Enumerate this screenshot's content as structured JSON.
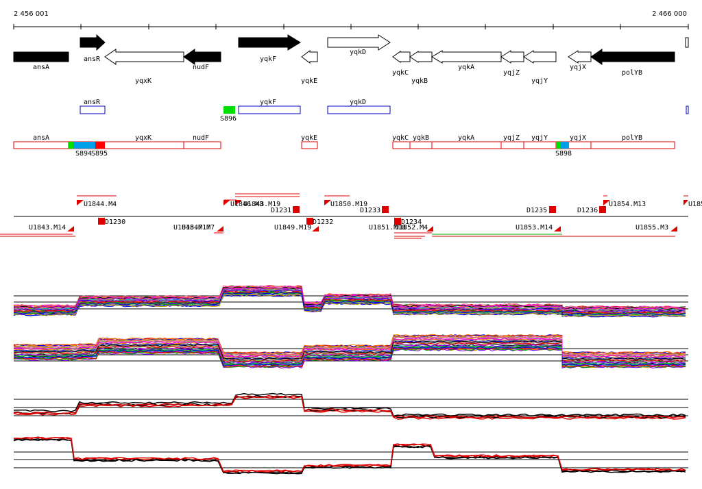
{
  "ruler": {
    "start_label": "2 456 001",
    "end_label": "2 466 000"
  },
  "colors": {
    "gene_fill": "#000000",
    "gene_outline": "#000000",
    "feature_blue": "#0000c0",
    "feature_red": "#e00000",
    "site_green": "#00e000",
    "site_blue": "#00a0e8",
    "site_red": "#ff0000",
    "trace_black": "#000000",
    "trace_red": "#e00000",
    "background": "#ffffff"
  },
  "genes": [
    {
      "name": "ansA",
      "label": "ansA",
      "strand": "-",
      "filled": true
    },
    {
      "name": "ansR",
      "label": "ansR",
      "strand": "+",
      "filled": true
    },
    {
      "name": "yqxK",
      "label": "yqxK",
      "strand": "-",
      "filled": false
    },
    {
      "name": "nudF",
      "label": "nudF",
      "strand": "-",
      "filled": true
    },
    {
      "name": "yqkF",
      "label": "yqkF",
      "strand": "+",
      "filled": true
    },
    {
      "name": "yqkE",
      "label": "yqkE",
      "strand": "-",
      "filled": false
    },
    {
      "name": "yqkD",
      "label": "yqkD",
      "strand": "+",
      "filled": false
    },
    {
      "name": "yqkC",
      "label": "yqkC",
      "strand": "-",
      "filled": false
    },
    {
      "name": "yqkB",
      "label": "yqkB",
      "strand": "-",
      "filled": false
    },
    {
      "name": "yqkA",
      "label": "yqkA",
      "strand": "-",
      "filled": false
    },
    {
      "name": "yqjZ",
      "label": "yqjZ",
      "strand": "-",
      "filled": false
    },
    {
      "name": "yqjY",
      "label": "yqjY",
      "strand": "-",
      "filled": false
    },
    {
      "name": "yqjX",
      "label": "yqjX",
      "strand": "-",
      "filled": false
    },
    {
      "name": "polYB",
      "label": "polYB",
      "strand": "-",
      "filled": true
    }
  ],
  "blue_features": [
    "ansR",
    "yqkF",
    "yqkD"
  ],
  "green_site_upper": "S896",
  "red_features": [
    "ansA",
    "yqxK",
    "nudF",
    "yqkE",
    "yqkC",
    "yqkB",
    "yqkA",
    "yqjZ",
    "yqjY",
    "yqjX",
    "polYB"
  ],
  "site_labels": [
    "S894",
    "S895",
    "S898"
  ],
  "upper_markers": [
    "U1844.M4",
    "U1848.M19",
    "U1846.M3",
    "D1231",
    "U1850.M19",
    "D1233",
    "D1235",
    "D1236",
    "U1854.M13",
    "U185"
  ],
  "lower_markers": [
    "U1843.M14",
    "D1230",
    "U1845.M17",
    "U1847.M7",
    "U1849.M19",
    "D1232",
    "U1851.M18",
    "U1852.M4",
    "D1234",
    "U1853.M14",
    "U1855.M3"
  ]
}
